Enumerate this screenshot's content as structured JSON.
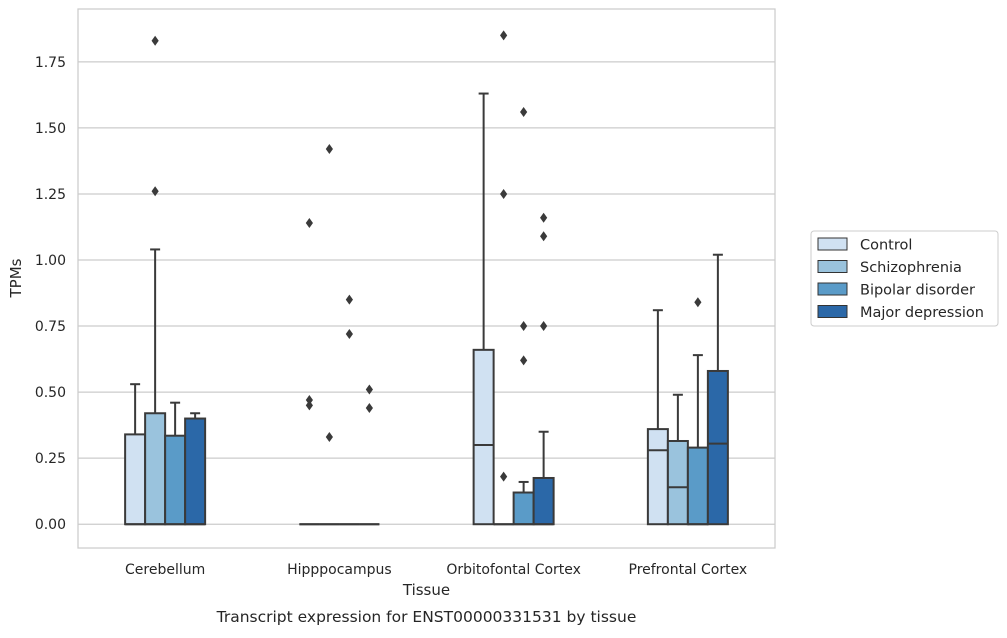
{
  "caption": "Transcript expression for ENST00000331531 by tissue",
  "chart_data": {
    "type": "box",
    "xlabel": "Tissue",
    "ylabel": "TPMs",
    "ylim": [
      -0.09,
      1.95
    ],
    "yticks": [
      "0.00",
      "0.25",
      "0.50",
      "0.75",
      "1.00",
      "1.25",
      "1.50",
      "1.75"
    ],
    "grid": "horizontal",
    "legend_position": "right",
    "categories": [
      "Cerebellum",
      "Hipppocampus",
      "Orbitofontal Cortex",
      "Prefrontal Cortex"
    ],
    "series": [
      {
        "name": "Control",
        "color": "#d0e1f2",
        "boxes": [
          {
            "q1": 0.0,
            "median": 0.0,
            "q3": 0.34,
            "whisker_low": 0.0,
            "whisker_high": 0.53,
            "outliers": []
          },
          {
            "q1": 0.0,
            "median": 0.0,
            "q3": 0.0,
            "whisker_low": 0.0,
            "whisker_high": 0.0,
            "outliers": [
              0.45,
              0.47,
              1.14
            ]
          },
          {
            "q1": 0.0,
            "median": 0.3,
            "q3": 0.66,
            "whisker_low": 0.0,
            "whisker_high": 1.63,
            "outliers": []
          },
          {
            "q1": 0.0,
            "median": 0.28,
            "q3": 0.36,
            "whisker_low": 0.0,
            "whisker_high": 0.81,
            "outliers": []
          }
        ]
      },
      {
        "name": "Schizophrenia",
        "color": "#9ac3dd",
        "boxes": [
          {
            "q1": 0.0,
            "median": 0.0,
            "q3": 0.42,
            "whisker_low": 0.0,
            "whisker_high": 1.04,
            "outliers": [
              1.26,
              1.83
            ]
          },
          {
            "q1": 0.0,
            "median": 0.0,
            "q3": 0.0,
            "whisker_low": 0.0,
            "whisker_high": 0.0,
            "outliers": [
              0.33,
              1.42
            ]
          },
          {
            "q1": 0.0,
            "median": 0.0,
            "q3": 0.0,
            "whisker_low": 0.0,
            "whisker_high": 0.0,
            "outliers": [
              0.18,
              1.25,
              1.85
            ]
          },
          {
            "q1": 0.0,
            "median": 0.14,
            "q3": 0.315,
            "whisker_low": 0.0,
            "whisker_high": 0.49,
            "outliers": []
          }
        ]
      },
      {
        "name": "Bipolar disorder",
        "color": "#5a9bc8",
        "boxes": [
          {
            "q1": 0.0,
            "median": 0.0,
            "q3": 0.335,
            "whisker_low": 0.0,
            "whisker_high": 0.46,
            "outliers": []
          },
          {
            "q1": 0.0,
            "median": 0.0,
            "q3": 0.0,
            "whisker_low": 0.0,
            "whisker_high": 0.0,
            "outliers": [
              0.72,
              0.85
            ]
          },
          {
            "q1": 0.0,
            "median": 0.0,
            "q3": 0.12,
            "whisker_low": 0.0,
            "whisker_high": 0.16,
            "outliers": [
              0.62,
              0.75,
              1.56
            ]
          },
          {
            "q1": 0.0,
            "median": 0.0,
            "q3": 0.29,
            "whisker_low": 0.0,
            "whisker_high": 0.64,
            "outliers": [
              0.84
            ]
          }
        ]
      },
      {
        "name": "Major depression",
        "color": "#2b68a8",
        "boxes": [
          {
            "q1": 0.0,
            "median": 0.0,
            "q3": 0.4,
            "whisker_low": 0.0,
            "whisker_high": 0.42,
            "outliers": []
          },
          {
            "q1": 0.0,
            "median": 0.0,
            "q3": 0.0,
            "whisker_low": 0.0,
            "whisker_high": 0.0,
            "outliers": [
              0.44,
              0.51
            ]
          },
          {
            "q1": 0.0,
            "median": 0.0,
            "q3": 0.175,
            "whisker_low": 0.0,
            "whisker_high": 0.35,
            "outliers": [
              0.75,
              1.09,
              1.16
            ]
          },
          {
            "q1": 0.0,
            "median": 0.305,
            "q3": 0.58,
            "whisker_low": 0.0,
            "whisker_high": 1.02,
            "outliers": []
          }
        ]
      }
    ]
  }
}
